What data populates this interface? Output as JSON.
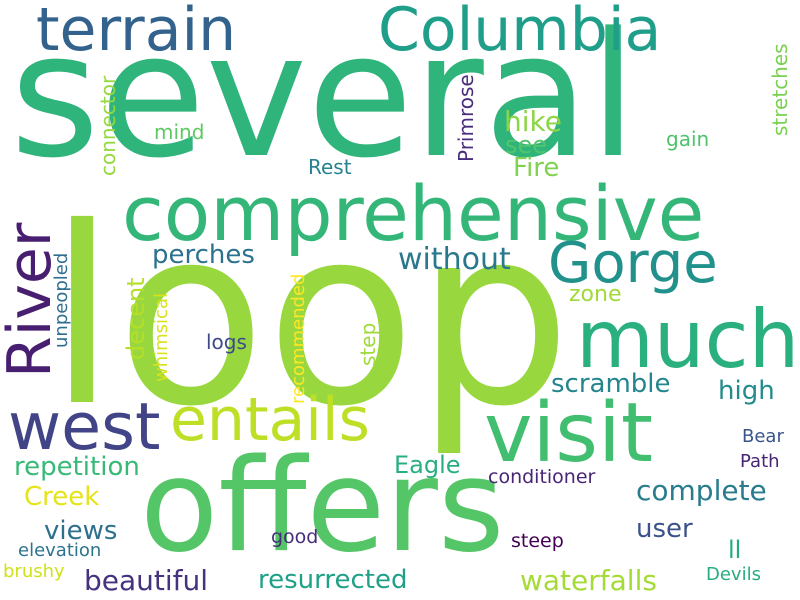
{
  "words": [
    {
      "text": "loop",
      "color": "#98d83e"
    },
    {
      "text": "several",
      "color": "#2fb47c"
    },
    {
      "text": "offers",
      "color": "#55c667"
    },
    {
      "text": "comprehensive",
      "color": "#34b679"
    },
    {
      "text": "visit",
      "color": "#42be71"
    },
    {
      "text": "much",
      "color": "#2ab07f"
    },
    {
      "text": "Columbia",
      "color": "#1f9e89"
    },
    {
      "text": "terrain",
      "color": "#33638d"
    },
    {
      "text": "west",
      "color": "#414487"
    },
    {
      "text": "entails",
      "color": "#bddf26"
    },
    {
      "text": "River",
      "color": "#481f70"
    },
    {
      "text": "Gorge",
      "color": "#21918c"
    },
    {
      "text": "without",
      "color": "#2a788e"
    },
    {
      "text": "perches",
      "color": "#2c728e"
    },
    {
      "text": "repetition",
      "color": "#38b977"
    },
    {
      "text": "complete",
      "color": "#287c8e"
    },
    {
      "text": "hike",
      "color": "#8bd646"
    },
    {
      "text": "see",
      "color": "#52c569"
    },
    {
      "text": "Fire",
      "color": "#7fd34e"
    },
    {
      "text": "scramble",
      "color": "#25858e"
    },
    {
      "text": "high",
      "color": "#228c8d"
    },
    {
      "text": "Eagle",
      "color": "#29af7f"
    },
    {
      "text": "Creek",
      "color": "#e5e419"
    },
    {
      "text": "views",
      "color": "#2d708e"
    },
    {
      "text": "beautiful",
      "color": "#46327e"
    },
    {
      "text": "resurrected",
      "color": "#1fa188"
    },
    {
      "text": "waterfalls",
      "color": "#a5db36"
    },
    {
      "text": "user",
      "color": "#3b528b"
    },
    {
      "text": "zone",
      "color": "#a0da39"
    },
    {
      "text": "decent",
      "color": "#b5de2b"
    },
    {
      "text": "connector",
      "color": "#95d840"
    },
    {
      "text": "Primrose",
      "color": "#472d7b"
    },
    {
      "text": "stretches",
      "color": "#7ad151"
    },
    {
      "text": "mind",
      "color": "#5ec962"
    },
    {
      "text": "gain",
      "color": "#4ec36b"
    },
    {
      "text": "Rest",
      "color": "#26828e"
    },
    {
      "text": "logs",
      "color": "#3e4989"
    },
    {
      "text": "step",
      "color": "#9fda3a"
    },
    {
      "text": "recommended",
      "color": "#fde725"
    },
    {
      "text": "whimsical",
      "color": "#d8e219"
    },
    {
      "text": "unpeopled",
      "color": "#2e6e8e"
    },
    {
      "text": "conditioner",
      "color": "#482576"
    },
    {
      "text": "Bear",
      "color": "#3a548c"
    },
    {
      "text": "Path",
      "color": "#482475"
    },
    {
      "text": "good",
      "color": "#472c7a"
    },
    {
      "text": "steep",
      "color": "#440154"
    },
    {
      "text": "elevation",
      "color": "#2c738e"
    },
    {
      "text": "brushy",
      "color": "#d0e11c"
    },
    {
      "text": "ll",
      "color": "#25ab82"
    },
    {
      "text": "Devils",
      "color": "#26ad81"
    }
  ]
}
